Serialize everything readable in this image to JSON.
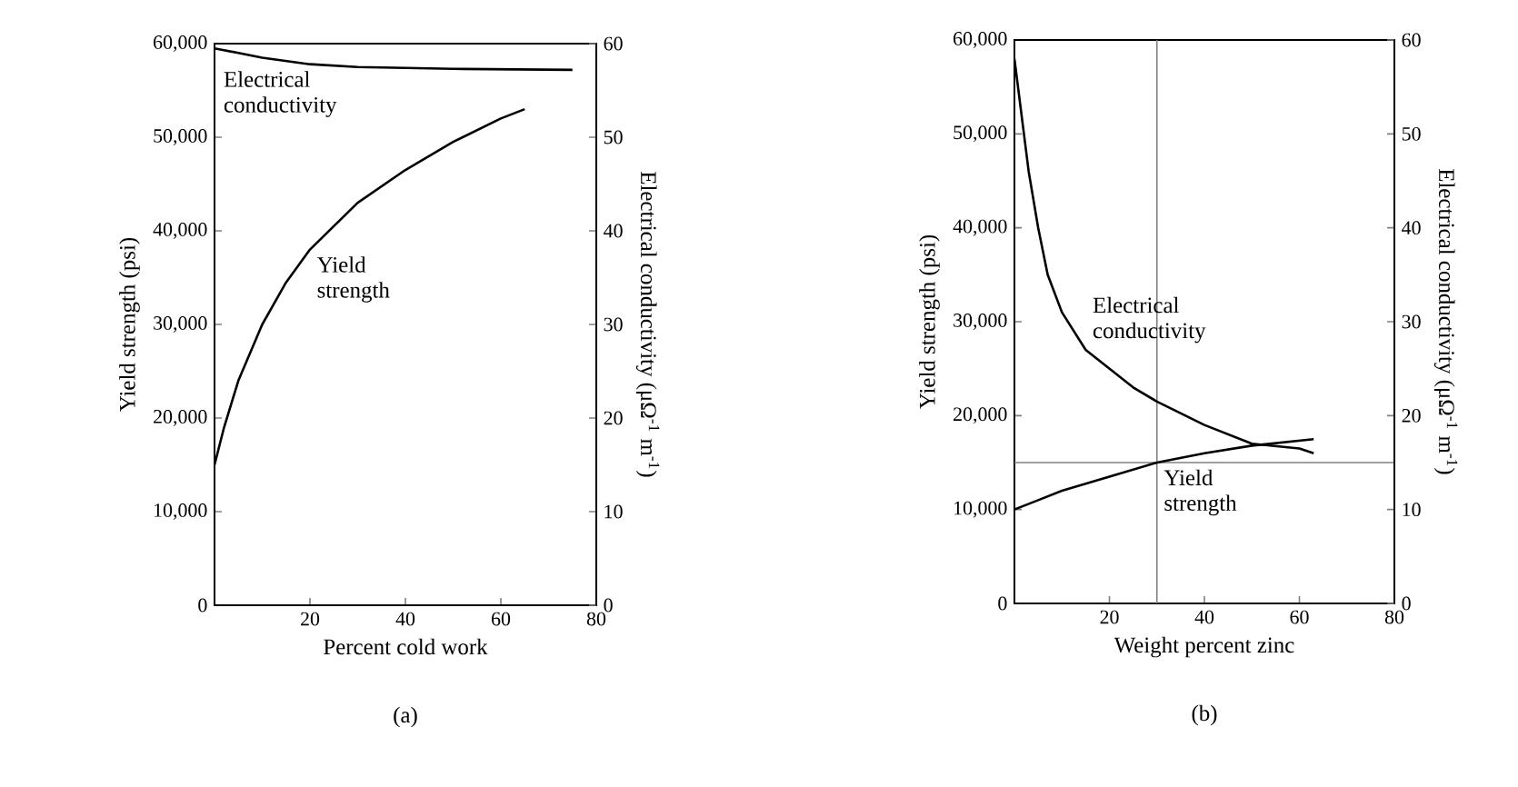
{
  "chart_data": [
    {
      "type": "line",
      "title": "(a)",
      "xlabel": "Percent cold work",
      "ylabel": "Yield strength (psi)",
      "y2label": "Electrical conductivity (μΩ$^{-1}$ m$^{-1}$)",
      "xlim": [
        0,
        80
      ],
      "xticks": [
        20,
        40,
        60,
        80
      ],
      "ylim": [
        0,
        60000
      ],
      "yticks": [
        0,
        {
          "value": 10000,
          "label": "10,000"
        },
        {
          "value": 20000,
          "label": "20,000"
        },
        {
          "value": 30000,
          "label": "30,000"
        },
        {
          "value": 40000,
          "label": "40,000"
        },
        {
          "value": 50000,
          "label": "50,000"
        },
        {
          "value": 60000,
          "label": "60,000"
        }
      ],
      "y2lim": [
        0,
        60
      ],
      "y2ticks": [
        0,
        10,
        20,
        30,
        40,
        50,
        60
      ],
      "series": [
        {
          "name": "Electrical conductivity",
          "color": "#000000",
          "axis": "y2",
          "x": [
            0,
            5,
            10,
            20,
            30,
            50,
            75
          ],
          "values": [
            59.5,
            59,
            58.5,
            57.8,
            57.5,
            57.3,
            57.2
          ]
        },
        {
          "name": "Yield strength",
          "color": "#000000",
          "x": [
            0,
            2,
            5,
            10,
            15,
            20,
            30,
            40,
            50,
            60,
            65
          ],
          "values": [
            15000,
            19000,
            24000,
            30000,
            34500,
            38000,
            43000,
            46500,
            49500,
            52000,
            53000
          ]
        }
      ]
    },
    {
      "type": "line",
      "title": "(b)",
      "xlabel": "Weight percent zinc",
      "ylabel": "Yield strength (psi)",
      "y2label": "Electrical conductivity (μΩ$^{-1}$ m$^{-1}$)",
      "xlim": [
        0,
        80
      ],
      "xticks": [
        20,
        40,
        60,
        80
      ],
      "ylim": [
        0,
        60000
      ],
      "yticks": [
        0,
        {
          "value": 10000,
          "label": "10,000"
        },
        {
          "value": 20000,
          "label": "20,000"
        },
        {
          "value": 30000,
          "label": "30,000"
        },
        {
          "value": 40000,
          "label": "40,000"
        },
        {
          "value": 50000,
          "label": "50,000"
        },
        {
          "value": 60000,
          "label": "60,000"
        }
      ],
      "y2lim": [
        0,
        60
      ],
      "y2ticks": [
        0,
        10,
        20,
        30,
        40,
        50,
        60
      ],
      "series": [
        {
          "name": "Electrical conductivity",
          "color": "#000000",
          "axis": "y2",
          "x": [
            0,
            1,
            2,
            3,
            5,
            7,
            10,
            15,
            20,
            25,
            30,
            40,
            50,
            60,
            63
          ],
          "values": [
            58,
            54,
            50,
            46,
            40,
            35,
            31,
            27,
            25,
            23,
            21.5,
            19,
            17,
            16.5,
            16
          ]
        },
        {
          "name": "Yield strength",
          "color": "#000000",
          "x": [
            0,
            5,
            10,
            20,
            30,
            40,
            50,
            63
          ],
          "values": [
            10000,
            11000,
            12000,
            13500,
            15000,
            16000,
            16800,
            17500
          ]
        }
      ],
      "ref_lines": [
        {
          "axis": "y",
          "value": 15000,
          "color": "#808080"
        },
        {
          "axis": "x",
          "value": 30,
          "color": "#808080"
        }
      ]
    }
  ]
}
